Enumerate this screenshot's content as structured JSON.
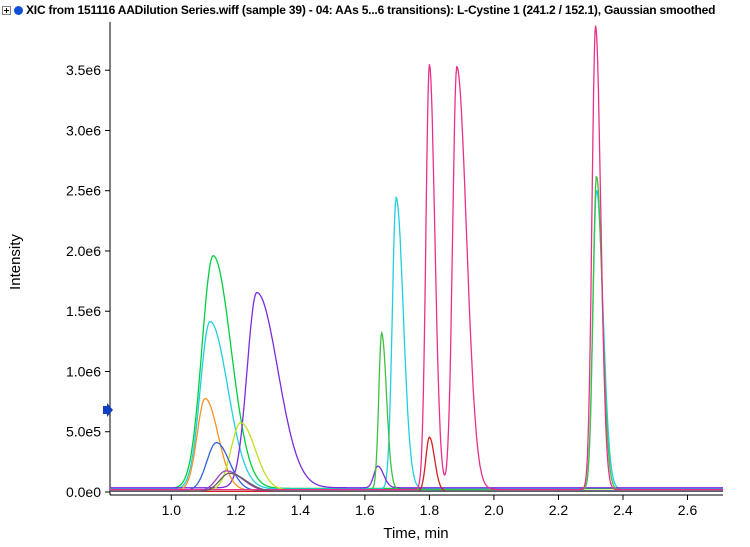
{
  "window": {
    "title": "XIC from 151116 AADilution Series.wiff (sample 39) - 04: AAs 5...6 transitions): L-Cystine 1 (241.2 / 152.1), Gaussian smoothed"
  },
  "icons": [
    "expand-icon",
    "status-dot-icon",
    "marker-arrow-icon"
  ],
  "colors": {
    "status_dot": "#1050d8",
    "marker_arrow": "#1040c0"
  },
  "chart_data": {
    "type": "line",
    "title": "XIC from 151116 AADilution Series.wiff (sample 39) - 04: AAs 5...6 transitions): L-Cystine 1 (241.2 / 152.1), Gaussian smoothed",
    "xlabel": "Time, min",
    "ylabel": "Intensity",
    "xlim": [
      0.81,
      2.71
    ],
    "ylim": [
      -25000,
      3900000
    ],
    "xticks": [
      1.0,
      1.2,
      1.4,
      1.6,
      1.8,
      2.0,
      2.2,
      2.4,
      2.6
    ],
    "xtick_labels": [
      "1.0",
      "1.2",
      "1.4",
      "1.6",
      "1.8",
      "2.0",
      "2.2",
      "2.4",
      "2.6"
    ],
    "yticks": [
      0,
      500000,
      1000000,
      1500000,
      2000000,
      2500000,
      3000000,
      3500000
    ],
    "ytick_labels": [
      "0.0e0",
      "5.0e5",
      "1.0e6",
      "1.5e6",
      "2.0e6",
      "2.5e6",
      "3.0e6",
      "3.5e6"
    ],
    "marker_y": 680000,
    "series": [
      {
        "color": "#00d040",
        "baseline": 30000,
        "peaks": [
          {
            "x": 1.13,
            "h": 1930000,
            "wl": 0.035,
            "wr": 0.055
          }
        ]
      },
      {
        "color": "#20d0e0",
        "baseline": 25000,
        "peaks": [
          {
            "x": 1.12,
            "h": 1390000,
            "wl": 0.03,
            "wr": 0.055
          },
          {
            "x": 1.697,
            "h": 2420000,
            "wl": 0.012,
            "wr": 0.022
          },
          {
            "x": 2.318,
            "h": 2480000,
            "wl": 0.011,
            "wr": 0.02
          }
        ]
      },
      {
        "color": "#7b2ce0",
        "baseline": 35000,
        "peaks": [
          {
            "x": 1.265,
            "h": 1620000,
            "wl": 0.03,
            "wr": 0.065
          },
          {
            "x": 1.64,
            "h": 180000,
            "wl": 0.012,
            "wr": 0.018
          }
        ]
      },
      {
        "color": "#ff9020",
        "baseline": 15000,
        "peaks": [
          {
            "x": 1.105,
            "h": 760000,
            "wl": 0.025,
            "wr": 0.04
          }
        ]
      },
      {
        "color": "#c0e020",
        "baseline": 15000,
        "peaks": [
          {
            "x": 1.215,
            "h": 560000,
            "wl": 0.03,
            "wr": 0.045
          }
        ]
      },
      {
        "color": "#3060d8",
        "baseline": 10000,
        "peaks": [
          {
            "x": 1.14,
            "h": 400000,
            "wl": 0.03,
            "wr": 0.04
          }
        ]
      },
      {
        "color": "#40c040",
        "baseline": 20000,
        "peaks": [
          {
            "x": 1.652,
            "h": 1300000,
            "wl": 0.009,
            "wr": 0.015
          },
          {
            "x": 2.318,
            "h": 2600000,
            "wl": 0.011,
            "wr": 0.018
          }
        ]
      },
      {
        "color": "#e8308c",
        "baseline": 20000,
        "peaks": [
          {
            "x": 1.8,
            "h": 3100000,
            "wl": 0.011,
            "wr": 0.017
          },
          {
            "x": 1.885,
            "h": 3510000,
            "wl": 0.013,
            "wr": 0.03
          },
          {
            "x": 1.8,
            "h": 430000,
            "wl": 0.01,
            "wr": 0.015
          },
          {
            "x": 2.315,
            "h": 3850000,
            "wl": 0.011,
            "wr": 0.016
          }
        ]
      },
      {
        "color": "#d02020",
        "baseline": 5000,
        "peaks": [
          {
            "x": 1.8,
            "h": 450000,
            "wl": 0.011,
            "wr": 0.016
          }
        ]
      },
      {
        "color": "#a040c0",
        "baseline": 5000,
        "peaks": [
          {
            "x": 1.17,
            "h": 170000,
            "wl": 0.03,
            "wr": 0.05
          }
        ]
      },
      {
        "color": "#606060",
        "baseline": 5000,
        "peaks": [
          {
            "x": 1.18,
            "h": 150000,
            "wl": 0.03,
            "wr": 0.05
          }
        ]
      }
    ]
  }
}
